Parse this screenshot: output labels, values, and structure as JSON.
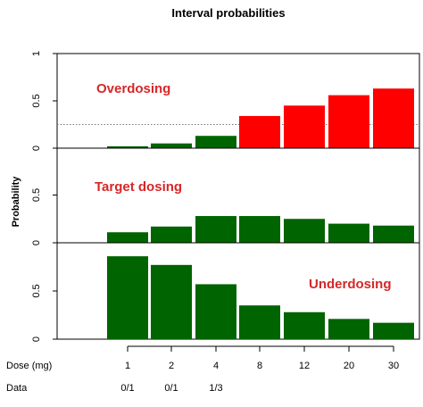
{
  "chart_data": {
    "type": "bar",
    "title": "Interval probabilities",
    "ylabel": "Probability",
    "x_axis_label": "Dose (mg)",
    "data_row_label": "Data",
    "categories": [
      "1",
      "2",
      "4",
      "8",
      "12",
      "20",
      "30"
    ],
    "data_row": [
      "0/1",
      "0/1",
      "1/3",
      "",
      "",
      "",
      ""
    ],
    "panels": [
      {
        "name": "Overdosing",
        "ylim": [
          0,
          1
        ],
        "yticks": [
          "0",
          "0.5",
          "1"
        ],
        "reference_line": 0.25,
        "values": [
          0.02,
          0.05,
          0.13,
          0.34,
          0.45,
          0.56,
          0.63
        ],
        "colors": [
          "#006400",
          "#006400",
          "#006400",
          "#ff0000",
          "#ff0000",
          "#ff0000",
          "#ff0000"
        ]
      },
      {
        "name": "Target dosing",
        "ylim": [
          0,
          0.6
        ],
        "yticks": [
          "0",
          "0.5"
        ],
        "values": [
          0.11,
          0.17,
          0.28,
          0.28,
          0.25,
          0.2,
          0.18
        ],
        "colors": [
          "#006400",
          "#006400",
          "#006400",
          "#006400",
          "#006400",
          "#006400",
          "#006400"
        ]
      },
      {
        "name": "Underdosing",
        "ylim": [
          0,
          0.9
        ],
        "yticks": [
          "0",
          "0.5"
        ],
        "values": [
          0.86,
          0.77,
          0.57,
          0.35,
          0.28,
          0.21,
          0.17
        ],
        "colors": [
          "#006400",
          "#006400",
          "#006400",
          "#006400",
          "#006400",
          "#006400",
          "#006400"
        ]
      }
    ]
  }
}
